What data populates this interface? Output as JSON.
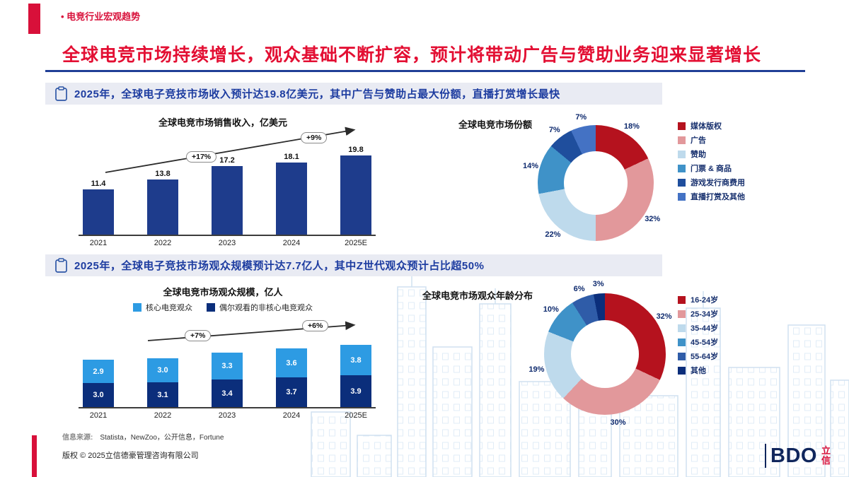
{
  "page": {
    "breadcrumb": "• 电竞行业宏观趋势",
    "title": "全球电竞市场持续增长，观众基础不断扩容，预计将带动广告与赞助业务迎来显著增长"
  },
  "colors": {
    "accent_red": "#D8103A",
    "title_red": "#E30F33",
    "headline_blue": "#1D3CA0",
    "rule_blue": "#203F96",
    "logo_navy": "#10265C"
  },
  "sections": [
    {
      "headline": "2025年，全球电子竞技市场收入预计达19.8亿美元，其中广告与赞助占最大份额，直播打赏增长最快"
    },
    {
      "headline": "2025年，全球电子竞技市场观众规模预计达7.7亿人，其中Z世代观众预计占比超50%"
    }
  ],
  "chart_data": [
    {
      "type": "bar",
      "title": "全球电竞市场销售收入，亿美元",
      "categories": [
        "2021",
        "2022",
        "2023",
        "2024",
        "2025E"
      ],
      "values": [
        11.4,
        13.8,
        17.2,
        18.1,
        19.8
      ],
      "bar_color": "#1E3C8C",
      "growth_labels": [
        "+17%",
        "+9%"
      ],
      "ylim": [
        0,
        20
      ],
      "grid": false,
      "legend_position": "none"
    },
    {
      "type": "pie",
      "title": "全球电竞市场份额",
      "legend_position": "right",
      "slices": [
        {
          "label": "媒体版权",
          "value": 18,
          "pct": "18%",
          "color": "#B5121E"
        },
        {
          "label": "广告",
          "value": 32,
          "pct": "32%",
          "color": "#E2989B"
        },
        {
          "label": "赞助",
          "value": 22,
          "pct": "22%",
          "color": "#BEDAEC"
        },
        {
          "label": "门票 & 商品",
          "value": 14,
          "pct": "14%",
          "color": "#3F92C8"
        },
        {
          "label": "游戏发行商费用",
          "value": 7,
          "pct": "7%",
          "color": "#1F4E9D"
        },
        {
          "label": "直播打赏及其他",
          "value": 7,
          "pct": "7%",
          "color": "#4472C4"
        }
      ]
    },
    {
      "type": "bar",
      "stacked": true,
      "title": "全球电竞市场观众规模，亿人",
      "categories": [
        "2021",
        "2022",
        "2023",
        "2024",
        "2025E"
      ],
      "series": [
        {
          "name": "核心电竞观众",
          "color": "#2D9BE3",
          "values": [
            2.9,
            3.0,
            3.3,
            3.6,
            3.8
          ]
        },
        {
          "name": "偶尔观看的非核心电竞观众",
          "color": "#0B2E7B",
          "values": [
            3.0,
            3.1,
            3.4,
            3.7,
            3.9
          ]
        }
      ],
      "growth_labels": [
        "+7%",
        "+6%"
      ],
      "ylim": [
        0,
        8
      ],
      "grid": false,
      "legend_position": "top"
    },
    {
      "type": "pie",
      "title": "全球电竞市场观众年龄分布",
      "legend_position": "right",
      "slices": [
        {
          "label": "16-24岁",
          "value": 32,
          "pct": "32%",
          "color": "#B5121E"
        },
        {
          "label": "25-34岁",
          "value": 30,
          "pct": "30%",
          "color": "#E2989B"
        },
        {
          "label": "35-44岁",
          "value": 19,
          "pct": "19%",
          "color": "#BEDAEC"
        },
        {
          "label": "45-54岁",
          "value": 10,
          "pct": "10%",
          "color": "#3F92C8"
        },
        {
          "label": "55-64岁",
          "value": 6,
          "pct": "6%",
          "color": "#2F5CA8"
        },
        {
          "label": "其他",
          "value": 3,
          "pct": "3%",
          "color": "#0B2E7B"
        }
      ]
    }
  ],
  "footer": {
    "source_label": "信息来源:",
    "source_value": "Statista，NewZoo，公开信息，Fortune",
    "copyright": "版权 © 2025立信德豪管理咨询有限公司",
    "logo_text": "BDO",
    "logo_cn": "立信"
  }
}
